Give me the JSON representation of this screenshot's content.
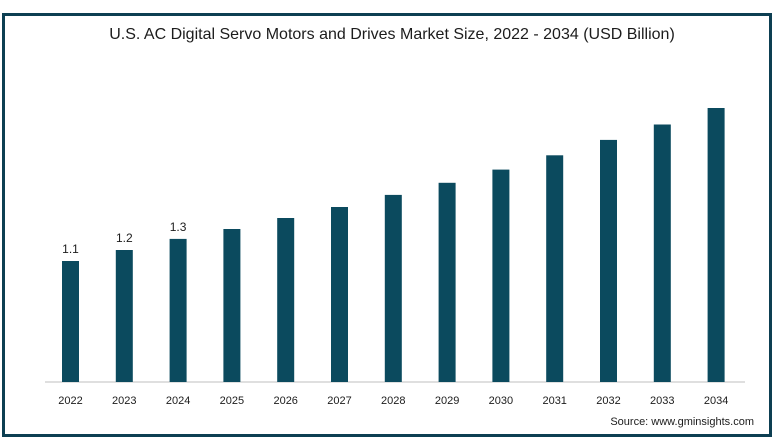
{
  "chart_data": {
    "type": "bar",
    "title": "U.S. AC Digital Servo Motors and Drives Market Size, 2022 - 2034 (USD Billion)",
    "xlabel": "",
    "ylabel": "",
    "categories": [
      "2022",
      "2023",
      "2024",
      "2025",
      "2026",
      "2027",
      "2028",
      "2029",
      "2030",
      "2031",
      "2032",
      "2033",
      "2034"
    ],
    "values": [
      1.1,
      1.2,
      1.3,
      1.39,
      1.49,
      1.59,
      1.7,
      1.81,
      1.93,
      2.06,
      2.2,
      2.34,
      2.49
    ],
    "data_labels": [
      "1.1",
      "1.2",
      "1.3",
      "",
      "",
      "",
      "",
      "",
      "",
      "",
      "",
      "",
      ""
    ],
    "ylim": [
      0,
      2.49
    ],
    "grid": false,
    "legend": "none",
    "bar_color": "#0b4a5e"
  },
  "source": "Source: www.gminsights.com",
  "colors": {
    "frame": "#0d3f52",
    "bar": "#0b4a5e",
    "axis": "#bfbfbf"
  }
}
